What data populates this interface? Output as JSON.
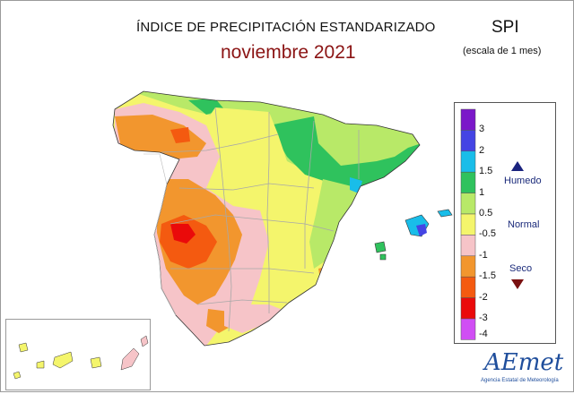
{
  "header": {
    "title": "ÍNDICE DE PRECIPITACIÓN ESTANDARIZADO",
    "period": "noviembre 2021",
    "index_name": "SPI",
    "scale_note": "(escala de 1 mes)"
  },
  "legend": {
    "bins": [
      {
        "color": "#7b18c9",
        "label": "3"
      },
      {
        "color": "#4444e4",
        "label": "2"
      },
      {
        "color": "#19bde9",
        "label": "1.5"
      },
      {
        "color": "#2fc25d",
        "label": "1"
      },
      {
        "color": "#b8e968",
        "label": "0.5"
      },
      {
        "color": "#f4f56c",
        "label": "-0.5"
      },
      {
        "color": "#f6c4c8",
        "label": "-1"
      },
      {
        "color": "#f2962e",
        "label": "-1.5"
      },
      {
        "color": "#f45a10",
        "label": "-2"
      },
      {
        "color": "#ea0a0a",
        "label": "-3"
      },
      {
        "color": "#d04ef4",
        "label": "-4"
      }
    ],
    "classes": {
      "wet": "Humedo",
      "normal": "Normal",
      "dry": "Seco"
    },
    "wet_symbol": "triangle-up-icon",
    "dry_symbol": "triangle-down-icon"
  },
  "branding": {
    "logo_text": "AEmet",
    "agency": "Agencia Estatal de Meteorología"
  }
}
